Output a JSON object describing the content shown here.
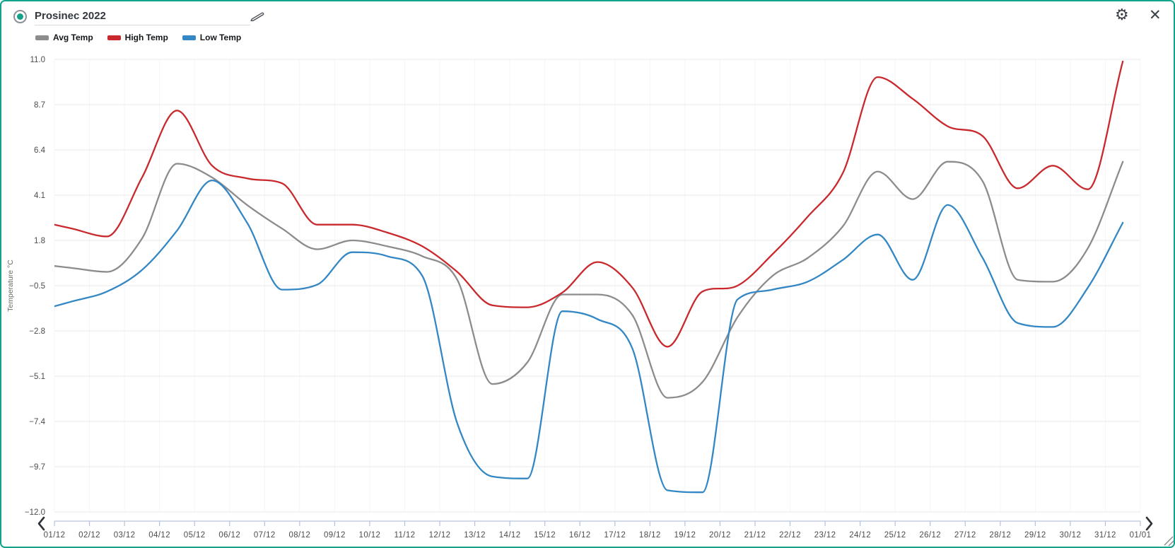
{
  "header": {
    "title": "Prosinec 2022",
    "record_color": "#12a189",
    "gear_glyph": "⚙",
    "close_glyph": "✕"
  },
  "legend": {
    "items": [
      {
        "label": "Avg Temp",
        "color": "#8c8c8c"
      },
      {
        "label": "High Temp",
        "color": "#c9292d"
      },
      {
        "label": "Low Temp",
        "color": "#3387c4"
      }
    ]
  },
  "chart_data": {
    "type": "line",
    "title": "Prosinec 2022",
    "xlabel": "",
    "ylabel": "Temperature °C",
    "ylim": [
      -12.0,
      11.0
    ],
    "yticks": [
      11.0,
      8.7,
      6.4,
      4.1,
      1.8,
      -0.5,
      -2.8,
      -5.1,
      -7.4,
      -9.7,
      -12.0
    ],
    "ytick_labels": [
      "11.0",
      "8.7",
      "6.4",
      "4.1",
      "1.8",
      "−0.5",
      "−2.8",
      "−5.1",
      "−7.4",
      "−9.7",
      "−12.0"
    ],
    "x_tick_labels": [
      "01/12",
      "02/12",
      "03/12",
      "04/12",
      "05/12",
      "06/12",
      "07/12",
      "08/12",
      "09/12",
      "10/12",
      "11/12",
      "12/12",
      "13/12",
      "14/12",
      "15/12",
      "16/12",
      "17/12",
      "18/12",
      "19/12",
      "20/12",
      "21/12",
      "22/12",
      "23/12",
      "24/12",
      "25/12",
      "26/12",
      "27/12",
      "28/12",
      "29/12",
      "30/12",
      "31/12",
      "01/01"
    ],
    "categories": [
      "01/12",
      "02/12",
      "03/12",
      "04/12",
      "05/12",
      "06/12",
      "07/12",
      "08/12",
      "09/12",
      "10/12",
      "11/12",
      "12/12",
      "13/12",
      "14/12",
      "15/12",
      "16/12",
      "17/12",
      "18/12",
      "19/12",
      "20/12",
      "21/12",
      "22/12",
      "23/12",
      "24/12",
      "25/12",
      "26/12",
      "27/12",
      "28/12",
      "29/12",
      "30/12",
      "31/12"
    ],
    "grid": true,
    "legend_position": "top-left",
    "series": [
      {
        "name": "Avg Temp",
        "color": "#8c8c8c",
        "values": [
          0.4,
          0.2,
          1.9,
          5.7,
          5.0,
          3.6,
          2.4,
          1.35,
          1.8,
          1.5,
          1.0,
          -0.2,
          -5.5,
          -4.4,
          -0.95,
          -0.95,
          -2.0,
          -6.2,
          -5.4,
          -2.1,
          0.0,
          0.9,
          2.5,
          5.3,
          3.9,
          5.8,
          4.8,
          -0.2,
          -0.3,
          1.4,
          5.8
        ]
      },
      {
        "name": "High Temp",
        "color": "#c9292d",
        "values": [
          2.4,
          2.0,
          5.0,
          8.4,
          5.6,
          4.95,
          4.7,
          2.6,
          2.6,
          2.2,
          1.5,
          0.2,
          -1.5,
          -1.6,
          -0.85,
          0.7,
          -0.6,
          -3.6,
          -0.8,
          -0.5,
          1.1,
          3.0,
          5.2,
          10.1,
          9.0,
          7.6,
          7.1,
          4.45,
          5.6,
          4.4,
          10.9
        ]
      },
      {
        "name": "Low Temp",
        "color": "#3387c4",
        "values": [
          -1.3,
          -0.8,
          0.3,
          2.3,
          4.85,
          2.7,
          -0.7,
          -0.45,
          1.2,
          1.0,
          0.0,
          -7.5,
          -10.2,
          -10.3,
          -1.8,
          -2.2,
          -3.7,
          -10.9,
          -11.0,
          -1.2,
          -0.7,
          -0.3,
          0.8,
          2.1,
          -0.2,
          3.6,
          0.9,
          -2.4,
          -2.6,
          -0.6,
          2.7
        ]
      }
    ],
    "style": {
      "grid_color": "#e9e9e9",
      "vgrid_color": "#f5f5f5",
      "axis_strip_color": "#b6c2d9",
      "tick_label_color": "#4c4c4c",
      "ylabel_color": "#6a6a6a",
      "chevron_color": "#2e3338",
      "resize_handle_color": "#8a8a8a"
    }
  }
}
